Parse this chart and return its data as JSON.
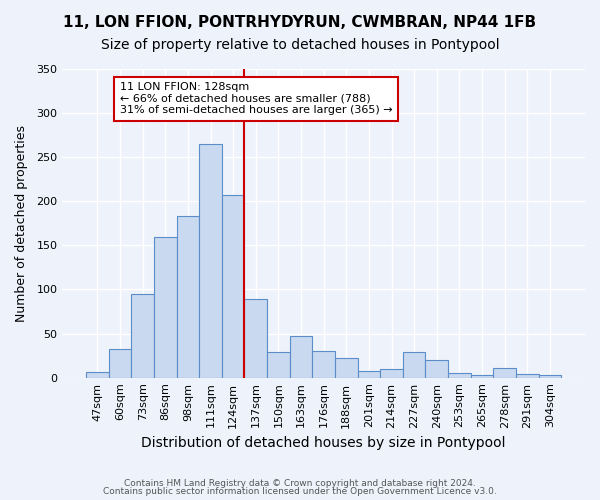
{
  "title": "11, LON FFION, PONTRHYDYRUN, CWMBRAN, NP44 1FB",
  "subtitle": "Size of property relative to detached houses in Pontypool",
  "xlabel": "Distribution of detached houses by size in Pontypool",
  "ylabel": "Number of detached properties",
  "categories": [
    "47sqm",
    "60sqm",
    "73sqm",
    "86sqm",
    "98sqm",
    "111sqm",
    "124sqm",
    "137sqm",
    "150sqm",
    "163sqm",
    "176sqm",
    "188sqm",
    "201sqm",
    "214sqm",
    "227sqm",
    "240sqm",
    "253sqm",
    "265sqm",
    "278sqm",
    "291sqm",
    "304sqm"
  ],
  "values": [
    6,
    33,
    95,
    160,
    183,
    265,
    207,
    89,
    29,
    47,
    30,
    22,
    8,
    10,
    29,
    20,
    5,
    3,
    11,
    4,
    3
  ],
  "bar_color": "#c9d9f0",
  "bar_edge_color": "#5b8ec9",
  "background_color": "#eef3fb",
  "grid_color": "#ffffff",
  "vline_color": "#cc0000",
  "vline_x": 6.5,
  "annotation_line1": "11 LON FFION: 128sqm",
  "annotation_line2": "← 66% of detached houses are smaller (788)",
  "annotation_line3": "31% of semi-detached houses are larger (365) →",
  "annotation_box_color": "#ffffff",
  "annotation_box_edge_color": "#cc0000",
  "ylim": [
    0,
    350
  ],
  "yticks": [
    0,
    50,
    100,
    150,
    200,
    250,
    300,
    350
  ],
  "footnote1": "Contains HM Land Registry data © Crown copyright and database right 2024.",
  "footnote2": "Contains public sector information licensed under the Open Government Licence v3.0.",
  "title_fontsize": 11,
  "subtitle_fontsize": 10,
  "xlabel_fontsize": 10,
  "ylabel_fontsize": 9,
  "tick_fontsize": 8,
  "annotation_fontsize": 8
}
